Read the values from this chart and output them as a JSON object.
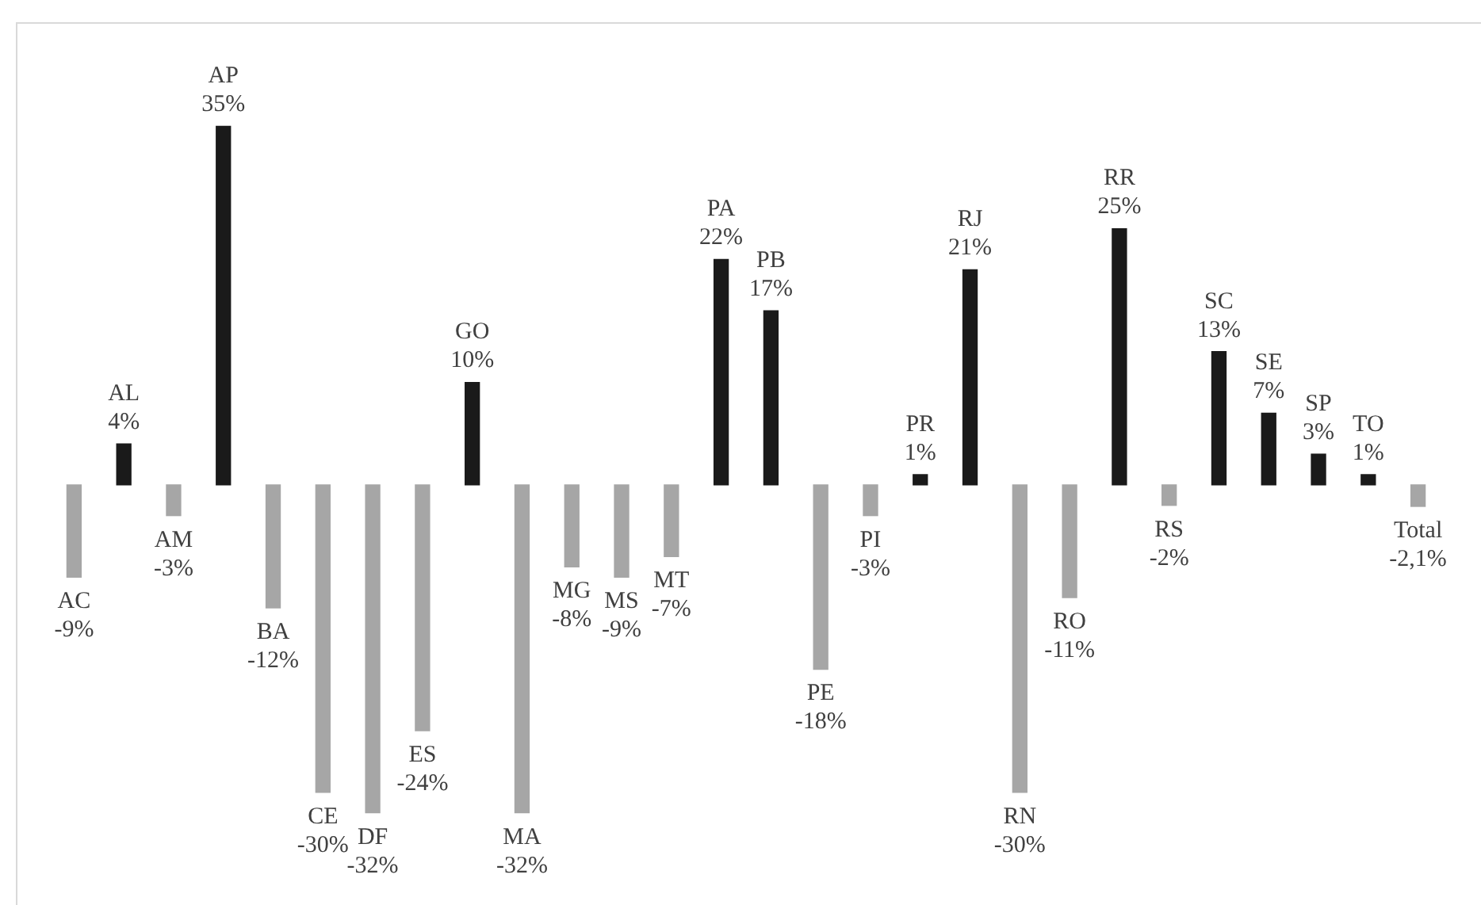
{
  "chart_data": {
    "type": "bar",
    "categories": [
      "AC",
      "AL",
      "AM",
      "AP",
      "BA",
      "CE",
      "DF",
      "ES",
      "GO",
      "MA",
      "MG",
      "MS",
      "MT",
      "PA",
      "PB",
      "PE",
      "PI",
      "PR",
      "RJ",
      "RN",
      "RO",
      "RR",
      "RS",
      "SC",
      "SE",
      "SP",
      "TO",
      "Total"
    ],
    "values": [
      -9,
      4,
      -3,
      35,
      -12,
      -30,
      -32,
      -24,
      10,
      -32,
      -8,
      -9,
      -7,
      22,
      17,
      -18,
      -3,
      1,
      21,
      -30,
      -11,
      25,
      -2,
      13,
      7,
      3,
      1,
      -2.1
    ],
    "value_labels": [
      "-9%",
      "4%",
      "-3%",
      "35%",
      "-12%",
      "-30%",
      "-32%",
      "-24%",
      "10%",
      "-32%",
      "-8%",
      "-9%",
      "-7%",
      "22%",
      "17%",
      "-18%",
      "-3%",
      "1%",
      "21%",
      "-30%",
      "-11%",
      "25%",
      "-2%",
      "13%",
      "7%",
      "3%",
      "1%",
      "-2,1%"
    ],
    "colors": [
      "#a6a6a6",
      "#1a1a1a",
      "#a6a6a6",
      "#1a1a1a",
      "#a6a6a6",
      "#a6a6a6",
      "#a6a6a6",
      "#a6a6a6",
      "#1a1a1a",
      "#a6a6a6",
      "#a6a6a6",
      "#a6a6a6",
      "#a6a6a6",
      "#1a1a1a",
      "#1a1a1a",
      "#a6a6a6",
      "#a6a6a6",
      "#1a1a1a",
      "#1a1a1a",
      "#a6a6a6",
      "#a6a6a6",
      "#1a1a1a",
      "#a6a6a6",
      "#1a1a1a",
      "#1a1a1a",
      "#1a1a1a",
      "#1a1a1a",
      "#a6a6a6"
    ],
    "ylim": [
      -41,
      45
    ],
    "tick_labels": false,
    "legend": false
  }
}
